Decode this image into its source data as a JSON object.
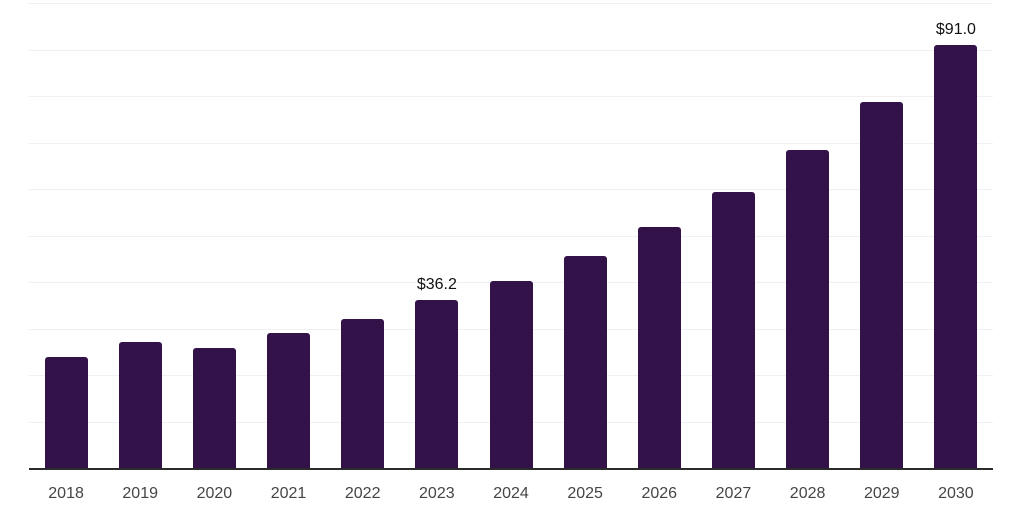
{
  "chart_data": {
    "type": "bar",
    "categories": [
      "2018",
      "2019",
      "2020",
      "2021",
      "2022",
      "2023",
      "2024",
      "2025",
      "2026",
      "2027",
      "2028",
      "2029",
      "2030"
    ],
    "values": [
      23.9,
      27.2,
      25.9,
      29.1,
      32.1,
      36.2,
      40.3,
      45.6,
      51.8,
      59.3,
      68.3,
      78.8,
      91.0
    ],
    "data_labels": {
      "2023": "$36.2",
      "2030": "$91.0"
    },
    "value_prefix": "$",
    "ylim": [
      0,
      100
    ],
    "gridline_step": 10,
    "grid": "horizontal",
    "legend": "none",
    "xlabel": "",
    "ylabel": "",
    "colors": {
      "bar": "#33124A",
      "gridline": "#F0EFF1",
      "axis_line": "#2B2B2B",
      "tick_label": "#454545",
      "value_label": "#111111",
      "background": "#FFFFFF"
    }
  }
}
